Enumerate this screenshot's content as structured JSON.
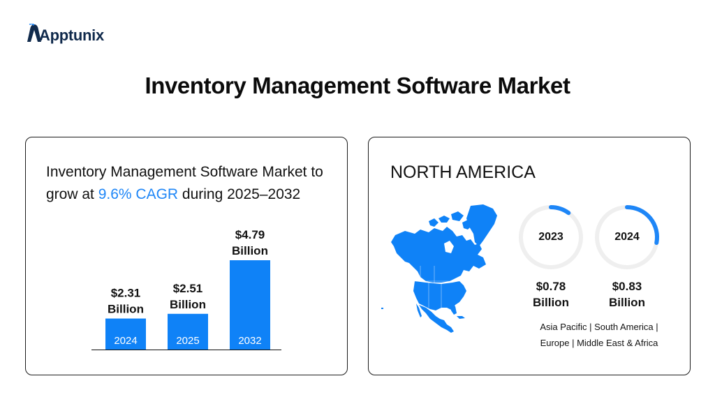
{
  "brand": {
    "name": "Apptunix",
    "color": "#102a4c"
  },
  "title": "Inventory Management Software Market",
  "left_panel": {
    "headline_pre": "Inventory Management Software Market to grow at ",
    "headline_accent": "9.6% CAGR",
    "headline_post": " during 2025–2032"
  },
  "right_panel": {
    "region": "NORTH AMERICA",
    "map_icon": "north-america-map-icon",
    "rings": [
      {
        "year": "2023",
        "value": "$0.78",
        "unit": "Billion",
        "fraction": 0.1
      },
      {
        "year": "2024",
        "value": "$0.83",
        "unit": "Billion",
        "fraction": 0.28
      }
    ],
    "other_regions_line1": "Asia Pacific | South America |",
    "other_regions_line2": "Europe | Middle East & Africa"
  },
  "colors": {
    "accent": "#1e86f7",
    "bar": "#0f82f7",
    "ring_track": "#efefef",
    "text": "#111111"
  },
  "chart_data": {
    "type": "bar",
    "categories": [
      "2024",
      "2025",
      "2032"
    ],
    "values": [
      2.31,
      2.51,
      4.79
    ],
    "value_labels": [
      "$2.31",
      "$2.51",
      "$4.79"
    ],
    "unit_label": "Billion",
    "ylim": [
      2.0,
      4.79
    ]
  }
}
